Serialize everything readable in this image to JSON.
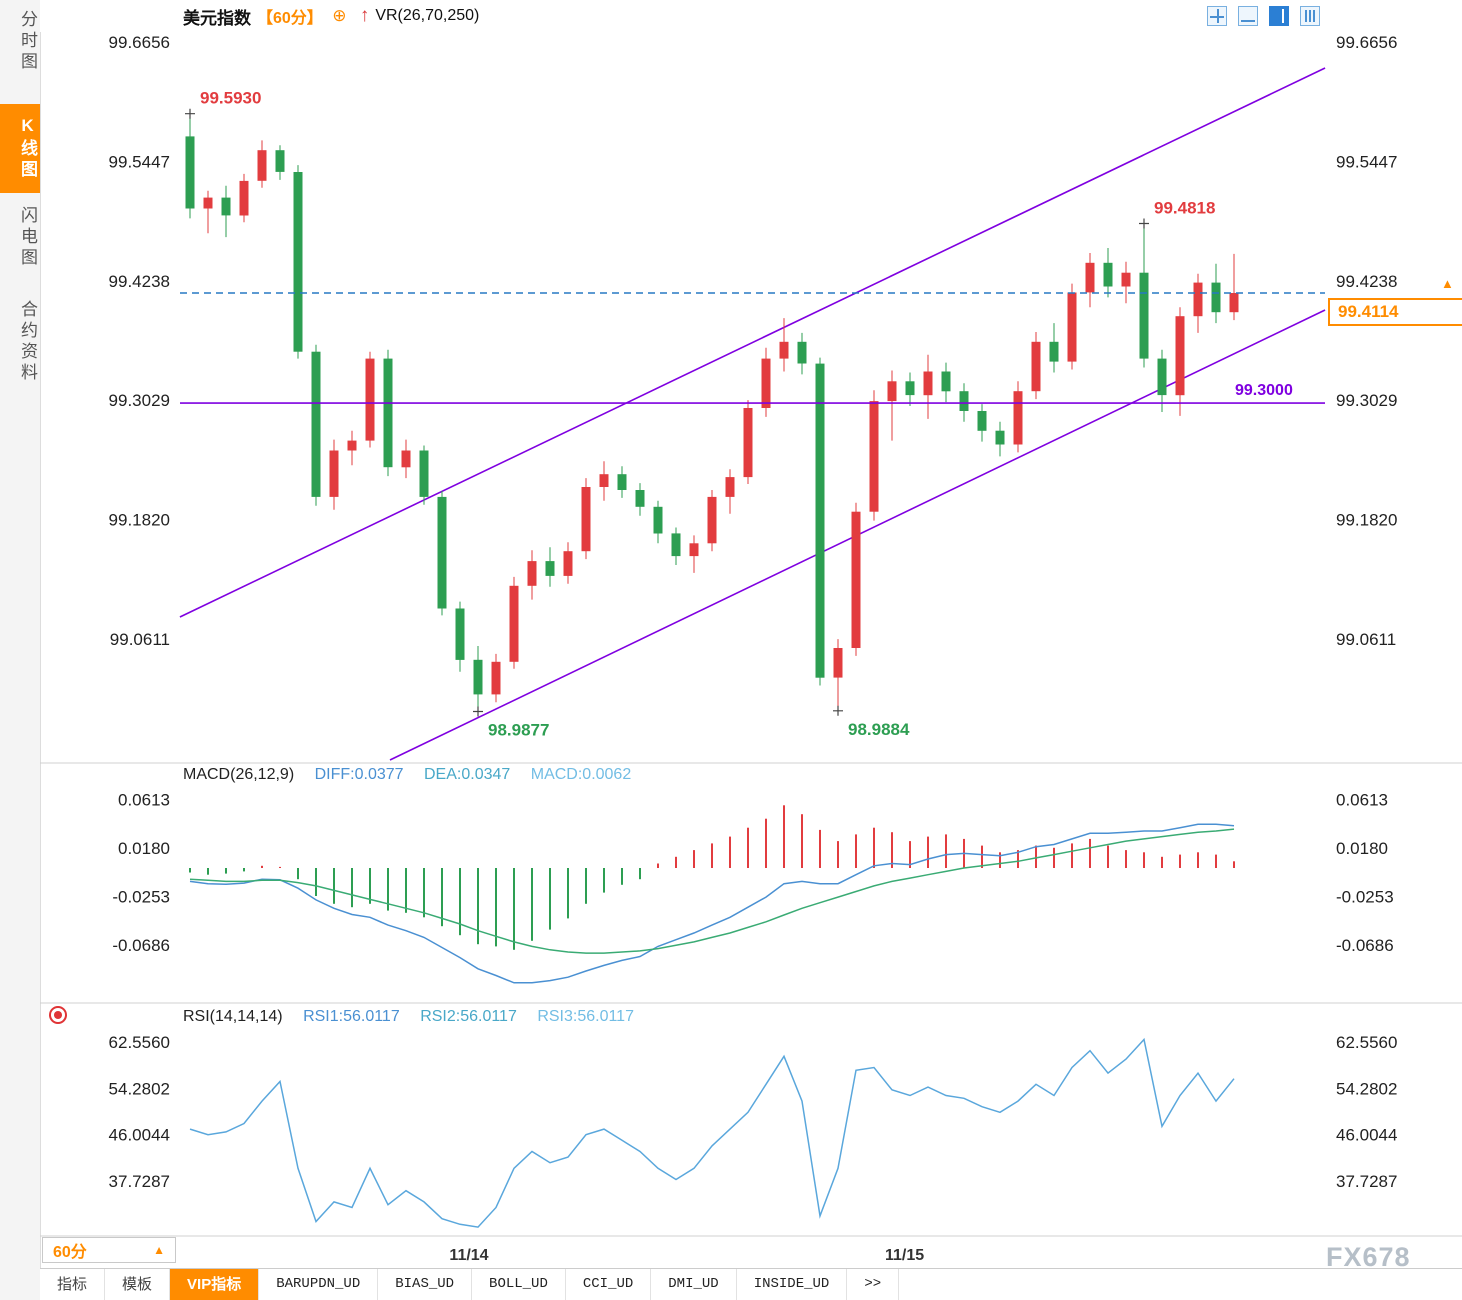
{
  "colors": {
    "up": "#e23c3f",
    "down": "#2d9e52",
    "purple": "#7f00e0",
    "dashed_blue": "#2778c4",
    "orange": "#ff8c00",
    "diff_line": "#4a90d2",
    "dea_line": "#3aab74",
    "rsi_line": "#5aa7dc",
    "diff_text": "#4a90d2",
    "dea_text": "#49a8c8",
    "macd_text": "#72bde4"
  },
  "sidebar": {
    "items": [
      {
        "label": "分时图",
        "active": false
      },
      {
        "label": "K线图",
        "active": true
      },
      {
        "label": "闪电图",
        "active": false
      },
      {
        "label": "合约资料",
        "active": false
      }
    ]
  },
  "header": {
    "title": "美元指数",
    "period": "【60分】",
    "add_icon": "⊕",
    "arrow_icon": "↑",
    "indicator": "VR(26,70,250)"
  },
  "legend_macd": {
    "name": "MACD(26,12,9)",
    "diff": "DIFF:0.0377",
    "dea": "DEA:0.0347",
    "macd": "MACD:0.0062"
  },
  "legend_rsi": {
    "name": "RSI(14,14,14)",
    "rsi1": "RSI1:56.0117",
    "rsi2": "RSI2:56.0117",
    "rsi3": "RSI3:56.0117"
  },
  "bottom": {
    "period": "60分",
    "arrow": "▲",
    "tabs": [
      {
        "label": "指标"
      },
      {
        "label": "模板"
      },
      {
        "label": "VIP指标",
        "active": true
      },
      {
        "label": "BARUPDN_UD"
      },
      {
        "label": "BIAS_UD"
      },
      {
        "label": "BOLL_UD"
      },
      {
        "label": "CCI_UD"
      },
      {
        "label": "DMI_UD"
      },
      {
        "label": "INSIDE_UD"
      },
      {
        "label": ">>"
      }
    ],
    "watermark": "FX678"
  },
  "price_tag_arrow": "▲",
  "chart_data": {
    "type": "candlestick",
    "title": "美元指数 60分",
    "price_range": [
      98.94,
      99.6656
    ],
    "price_ticks": [
      "99.6656",
      "99.5447",
      "99.4238",
      "99.3029",
      "99.1820",
      "99.0611"
    ],
    "x_labels": [
      {
        "text": "11/14",
        "t": 15.5
      },
      {
        "text": "11/15",
        "t": 39.7
      }
    ],
    "candles": [
      [
        99.57,
        99.593,
        99.487,
        99.497
      ],
      [
        99.497,
        99.515,
        99.472,
        99.508
      ],
      [
        99.508,
        99.52,
        99.468,
        99.49
      ],
      [
        99.49,
        99.532,
        99.483,
        99.525
      ],
      [
        99.525,
        99.566,
        99.518,
        99.556
      ],
      [
        99.556,
        99.561,
        99.526,
        99.534
      ],
      [
        99.534,
        99.541,
        99.345,
        99.352
      ],
      [
        99.352,
        99.359,
        99.196,
        99.205
      ],
      [
        99.205,
        99.263,
        99.192,
        99.252
      ],
      [
        99.252,
        99.272,
        99.237,
        99.262
      ],
      [
        99.262,
        99.352,
        99.255,
        99.345
      ],
      [
        99.345,
        99.354,
        99.226,
        99.235
      ],
      [
        99.235,
        99.263,
        99.224,
        99.252
      ],
      [
        99.252,
        99.257,
        99.197,
        99.205
      ],
      [
        99.205,
        99.211,
        99.085,
        99.092
      ],
      [
        99.092,
        99.099,
        99.028,
        99.04
      ],
      [
        99.04,
        99.054,
        98.9877,
        99.005
      ],
      [
        99.005,
        99.046,
        98.997,
        99.038
      ],
      [
        99.038,
        99.124,
        99.031,
        99.115
      ],
      [
        99.115,
        99.151,
        99.101,
        99.14
      ],
      [
        99.14,
        99.154,
        99.114,
        99.125
      ],
      [
        99.125,
        99.159,
        99.117,
        99.15
      ],
      [
        99.15,
        99.224,
        99.142,
        99.215
      ],
      [
        99.215,
        99.241,
        99.201,
        99.228
      ],
      [
        99.228,
        99.236,
        99.204,
        99.212
      ],
      [
        99.212,
        99.219,
        99.186,
        99.195
      ],
      [
        99.195,
        99.201,
        99.158,
        99.168
      ],
      [
        99.168,
        99.174,
        99.136,
        99.145
      ],
      [
        99.145,
        99.166,
        99.128,
        99.158
      ],
      [
        99.158,
        99.212,
        99.15,
        99.205
      ],
      [
        99.205,
        99.233,
        99.188,
        99.225
      ],
      [
        99.225,
        99.303,
        99.218,
        99.295
      ],
      [
        99.295,
        99.356,
        99.286,
        99.345
      ],
      [
        99.345,
        99.386,
        99.332,
        99.362
      ],
      [
        99.362,
        99.371,
        99.329,
        99.34
      ],
      [
        99.34,
        99.346,
        99.014,
        99.022
      ],
      [
        99.022,
        99.061,
        98.9884,
        99.052
      ],
      [
        99.052,
        99.199,
        99.044,
        99.19
      ],
      [
        99.19,
        99.313,
        99.181,
        99.302
      ],
      [
        99.302,
        99.333,
        99.262,
        99.322
      ],
      [
        99.322,
        99.331,
        99.297,
        99.308
      ],
      [
        99.308,
        99.349,
        99.284,
        99.332
      ],
      [
        99.332,
        99.341,
        99.301,
        99.312
      ],
      [
        99.312,
        99.32,
        99.281,
        99.292
      ],
      [
        99.292,
        99.299,
        99.261,
        99.272
      ],
      [
        99.272,
        99.281,
        99.246,
        99.258
      ],
      [
        99.258,
        99.322,
        99.25,
        99.312
      ],
      [
        99.312,
        99.372,
        99.304,
        99.362
      ],
      [
        99.362,
        99.381,
        99.331,
        99.342
      ],
      [
        99.342,
        99.421,
        99.334,
        99.412
      ],
      [
        99.412,
        99.452,
        99.397,
        99.442
      ],
      [
        99.442,
        99.457,
        99.407,
        99.418
      ],
      [
        99.418,
        99.443,
        99.401,
        99.432
      ],
      [
        99.432,
        99.4818,
        99.336,
        99.345
      ],
      [
        99.345,
        99.354,
        99.291,
        99.308
      ],
      [
        99.308,
        99.397,
        99.287,
        99.388
      ],
      [
        99.388,
        99.431,
        99.371,
        99.422
      ],
      [
        99.422,
        99.441,
        99.381,
        99.392
      ],
      [
        99.392,
        99.451,
        99.384,
        99.4114
      ]
    ],
    "annotations": [
      {
        "t": 0,
        "price": 99.593,
        "text": "99.5930",
        "placement": "high"
      },
      {
        "t": 53,
        "price": 99.4818,
        "text": "99.4818",
        "placement": "high"
      },
      {
        "t": 16,
        "price": 98.9877,
        "text": "98.9877",
        "placement": "low"
      },
      {
        "t": 36,
        "price": 98.9884,
        "text": "98.9884",
        "placement": "low"
      }
    ],
    "hlines": [
      {
        "price": 99.3,
        "label": "99.3000",
        "style": "solid"
      },
      {
        "price": 99.4114,
        "style": "dashed"
      }
    ],
    "trendlines": [
      {
        "t1": -0.56,
        "p1": 99.0834,
        "t2": 63.06,
        "p2": 99.6393
      },
      {
        "t1": 11.11,
        "p1": 98.9386,
        "t2": 63.06,
        "p2": 99.3942
      }
    ],
    "price_tag": {
      "text": "99.4114"
    },
    "macd": {
      "ticks": [
        "0.0613",
        "0.0180",
        "-0.0253",
        "-0.0686"
      ],
      "hist": [
        -0.004,
        -0.006,
        -0.005,
        -0.003,
        0.002,
        0.001,
        -0.01,
        -0.025,
        -0.032,
        -0.035,
        -0.032,
        -0.038,
        -0.04,
        -0.044,
        -0.052,
        -0.06,
        -0.068,
        -0.07,
        -0.073,
        -0.065,
        -0.055,
        -0.045,
        -0.032,
        -0.022,
        -0.015,
        -0.01,
        0.004,
        0.01,
        0.016,
        0.022,
        0.028,
        0.036,
        0.044,
        0.056,
        0.048,
        0.034,
        0.024,
        0.03,
        0.036,
        0.032,
        0.024,
        0.028,
        0.03,
        0.026,
        0.02,
        0.014,
        0.016,
        0.02,
        0.018,
        0.022,
        0.026,
        0.02,
        0.016,
        0.014,
        0.01,
        0.012,
        0.014,
        0.012,
        0.006
      ],
      "dea": [
        -0.01,
        -0.011,
        -0.012,
        -0.012,
        -0.011,
        -0.011,
        -0.013,
        -0.016,
        -0.02,
        -0.024,
        -0.028,
        -0.032,
        -0.036,
        -0.04,
        -0.045,
        -0.05,
        -0.056,
        -0.061,
        -0.066,
        -0.07,
        -0.073,
        -0.075,
        -0.076,
        -0.076,
        -0.075,
        -0.074,
        -0.072,
        -0.069,
        -0.066,
        -0.062,
        -0.058,
        -0.053,
        -0.048,
        -0.042,
        -0.036,
        -0.031,
        -0.026,
        -0.021,
        -0.016,
        -0.012,
        -0.009,
        -0.006,
        -0.003,
        0.0,
        0.002,
        0.004,
        0.006,
        0.009,
        0.012,
        0.015,
        0.018,
        0.021,
        0.024,
        0.026,
        0.028,
        0.03,
        0.032,
        0.033,
        0.0347
      ]
    },
    "rsi": {
      "ticks": [
        "62.5560",
        "54.2802",
        "46.0044",
        "37.7287"
      ],
      "values": [
        47,
        46,
        46.5,
        48,
        52,
        55.5,
        40,
        30.5,
        34,
        33,
        40,
        33.5,
        36,
        34,
        31,
        30,
        29.5,
        33,
        40,
        43,
        41,
        42,
        46,
        47,
        45,
        43,
        40,
        38,
        40,
        44,
        47,
        50,
        55,
        60,
        52,
        31.5,
        40,
        57.5,
        58,
        54,
        53,
        54.5,
        53,
        52.5,
        51,
        50,
        52,
        55,
        53,
        58,
        61,
        57,
        59.5,
        63,
        47.5,
        53,
        57,
        52,
        56
      ]
    }
  }
}
